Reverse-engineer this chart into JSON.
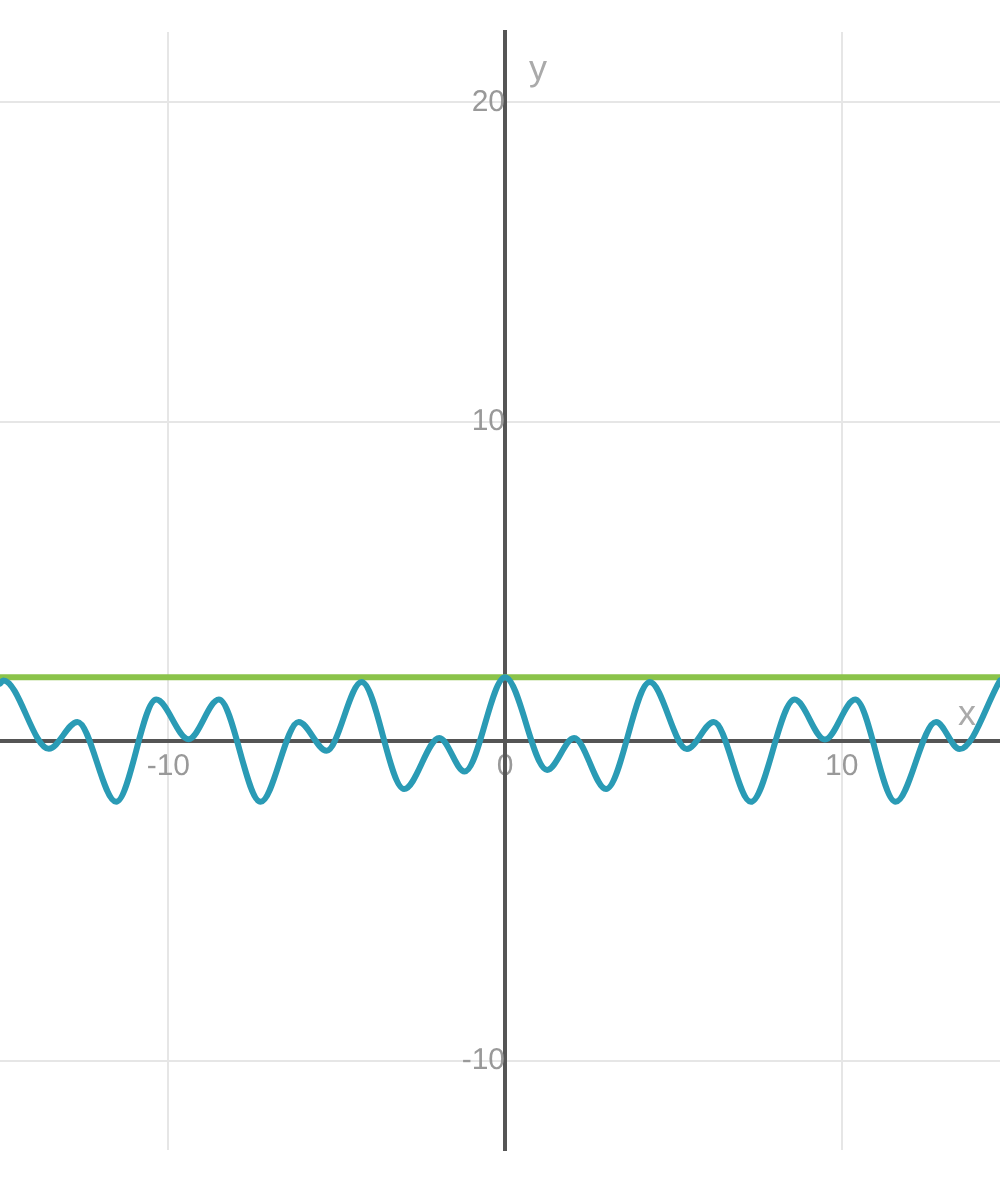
{
  "chart_data": {
    "type": "line",
    "xlabel": "x",
    "ylabel": "y",
    "xlim": [
      -15.0,
      14.7
    ],
    "ylim": [
      -12.8,
      22.2
    ],
    "xticks": [
      -10,
      0,
      10
    ],
    "yticks": [
      -10,
      {
        "value": 0,
        "label": null
      },
      10,
      20
    ],
    "grid": true,
    "legend": false,
    "marker": "none",
    "line_style": "solid",
    "series": [
      {
        "color": "#2a9bb5",
        "x": [
          -15.0,
          -14.9,
          -13.55,
          -12.7,
          -11.55,
          -10.36,
          -9.4,
          -8.5,
          -7.26,
          -6.13,
          -5.3,
          -4.26,
          -3.0,
          -1.95,
          -1.2,
          0,
          1.25,
          2.05,
          3.0,
          4.3,
          5.4,
          6.2,
          7.3,
          8.6,
          9.5,
          10.4,
          11.6,
          12.8,
          13.5,
          14.7
        ],
        "values": [
          1.8,
          1.9,
          -0.24,
          0.6,
          -1.9,
          1.3,
          0.06,
          1.3,
          -1.9,
          0.6,
          -0.3,
          1.85,
          -1.5,
          0.1,
          -0.95,
          2,
          -0.9,
          0.1,
          -1.5,
          1.85,
          -0.25,
          0.6,
          -1.9,
          1.3,
          0.05,
          1.3,
          -1.9,
          0.6,
          -0.25,
          1.9
        ]
      },
      {
        "color": "#8bc34a",
        "x": [
          -15.0,
          14.7
        ],
        "values": [
          2,
          2
        ]
      }
    ]
  }
}
